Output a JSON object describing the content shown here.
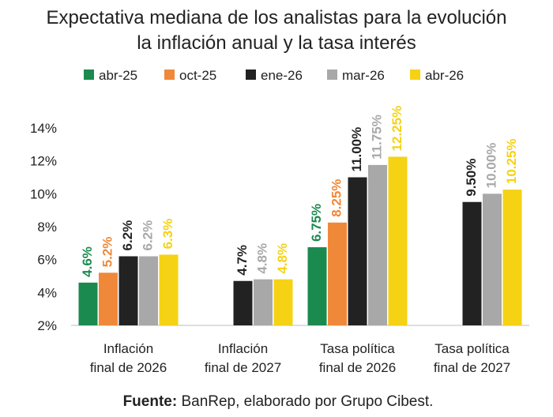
{
  "chart_data": {
    "type": "bar",
    "title": [
      "Expectativa mediana de los analistas para la evolución",
      "la inflación anual y la tasa interés"
    ],
    "categories": [
      [
        "Inflación",
        "final de 2026"
      ],
      [
        "Inflación",
        "final de 2027"
      ],
      [
        "Tasa política",
        "final de 2026"
      ],
      [
        "Tasa política",
        "final de 2027"
      ]
    ],
    "series": [
      {
        "name": "abr-25",
        "color": "#1a8a4e",
        "values": [
          4.6,
          null,
          6.75,
          null
        ],
        "labels": [
          "4.6%",
          "",
          "6.75%",
          ""
        ]
      },
      {
        "name": "oct-25",
        "color": "#f0883a",
        "values": [
          5.2,
          null,
          8.25,
          null
        ],
        "labels": [
          "5.2%",
          "",
          "8.25%",
          ""
        ]
      },
      {
        "name": "ene-26",
        "color": "#222222",
        "values": [
          6.2,
          4.7,
          11.0,
          9.5
        ],
        "labels": [
          "6.2%",
          "4.7%",
          "11.00%",
          "9.50%"
        ]
      },
      {
        "name": "mar-26",
        "color": "#a8a8a8",
        "values": [
          6.2,
          4.8,
          11.75,
          10.0
        ],
        "labels": [
          "6.2%",
          "4.8%",
          "11.75%",
          "10.00%"
        ]
      },
      {
        "name": "abr-26",
        "color": "#f5d214",
        "values": [
          6.3,
          4.8,
          12.25,
          10.25
        ],
        "labels": [
          "6.3%",
          "4.8%",
          "12.25%",
          "10.25%"
        ]
      }
    ],
    "ylim": [
      2,
      14
    ],
    "yticks": [
      2,
      4,
      6,
      8,
      10,
      12,
      14
    ],
    "ytick_labels": [
      "2%",
      "4%",
      "6%",
      "8%",
      "10%",
      "12%",
      "14%"
    ],
    "legend_position": "top",
    "grid": false
  },
  "source": {
    "label": "Fuente:",
    "text": " BanRep, elaborado por Grupo Cibest."
  }
}
